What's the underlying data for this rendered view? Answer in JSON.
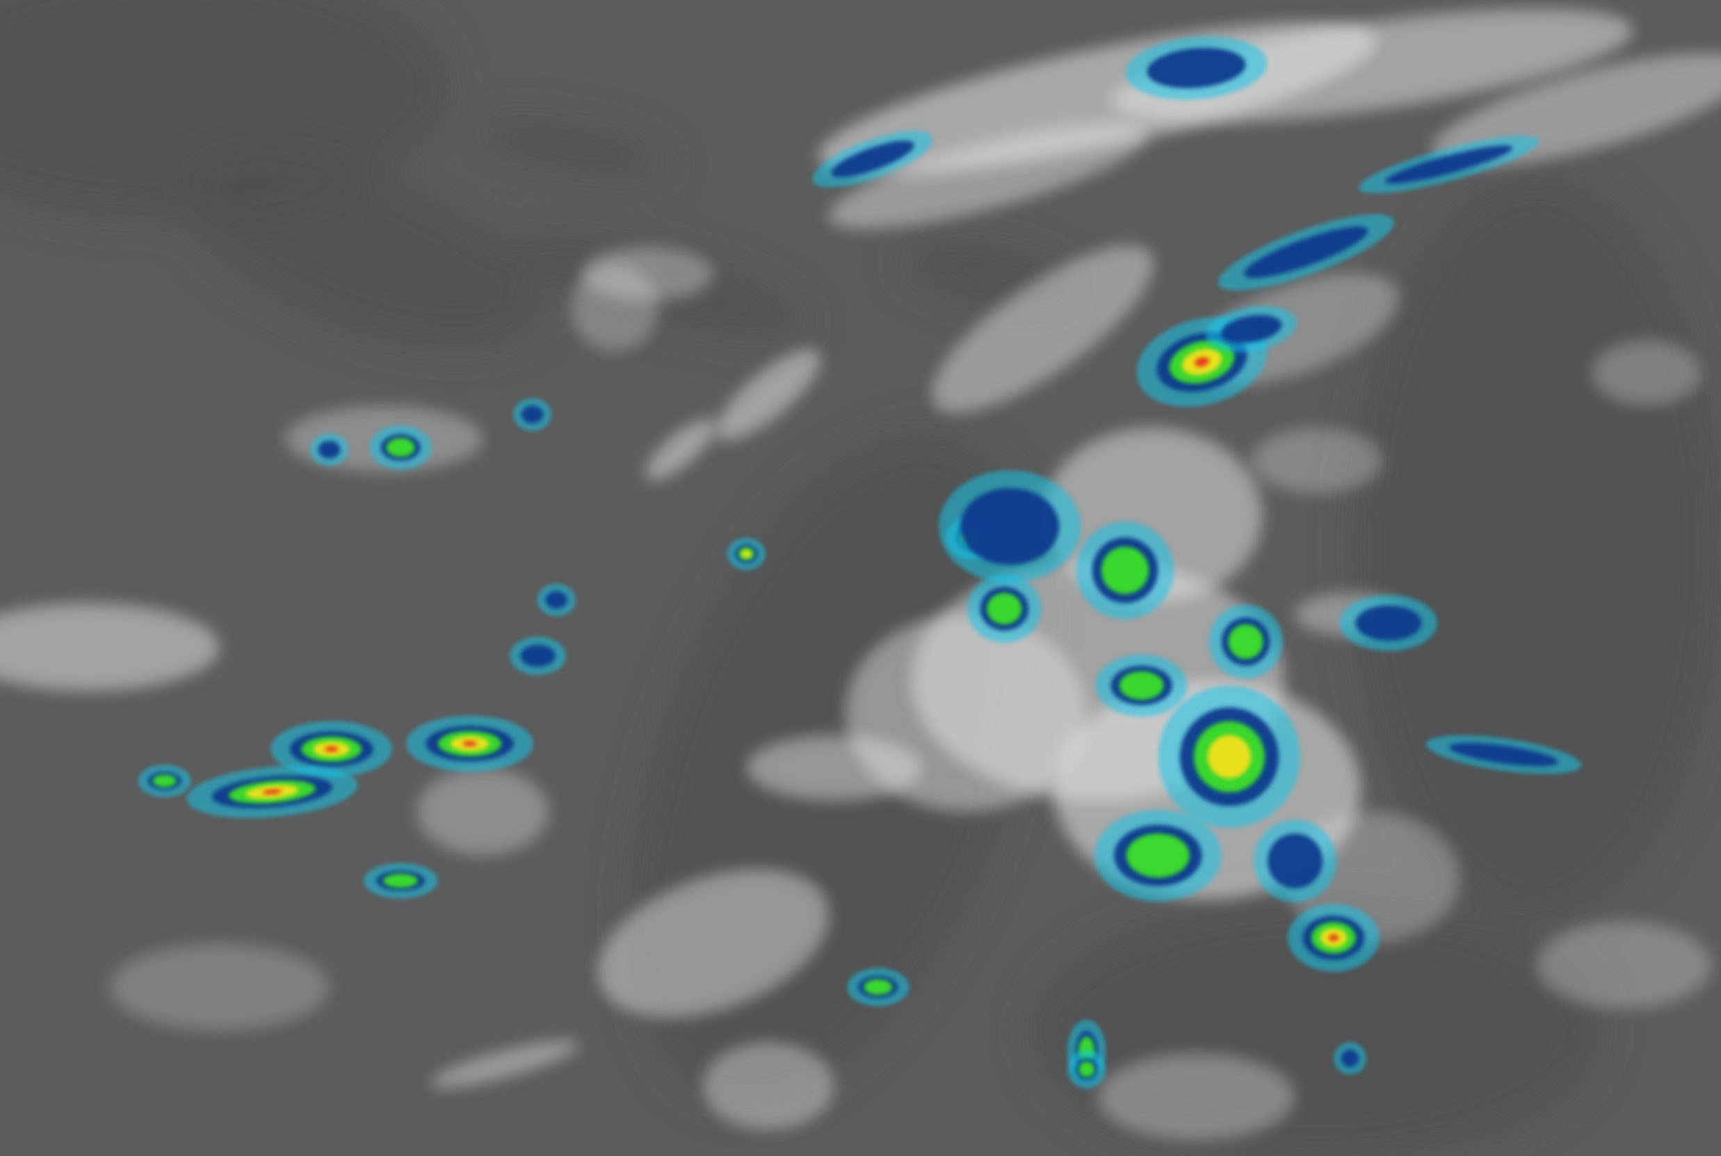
{
  "image": {
    "kind": "enhanced infrared satellite imagery",
    "colors": {
      "background_gray": "#5c5c5c",
      "land_gray": "#4e4e4e",
      "cloud_white": "#e8e8e8",
      "enhance_cyan": "#19c4e8",
      "enhance_blue": "#0a3a8c",
      "enhance_green": "#3ee02a",
      "enhance_yellow": "#f2e21c",
      "enhance_red": "#e8301c"
    }
  }
}
